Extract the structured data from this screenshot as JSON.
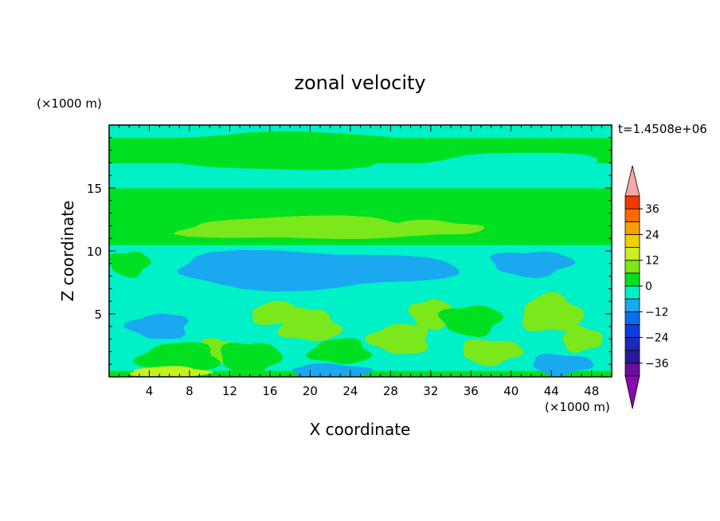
{
  "chart_data": {
    "type": "heatmap",
    "title": "zonal velocity",
    "xlabel": "X coordinate",
    "ylabel": "Z coordinate",
    "x_unit_label": "(×1000 m)",
    "y_unit_label": "(×1000 m)",
    "time_label": "t=1.4508e+06",
    "xlim": [
      0,
      50
    ],
    "ylim": [
      0,
      20
    ],
    "x_ticks": [
      4,
      8,
      12,
      16,
      20,
      24,
      28,
      32,
      36,
      40,
      44,
      48
    ],
    "y_ticks": [
      5,
      10,
      15
    ],
    "colorbar": {
      "tick_values": [
        36,
        24,
        12,
        0,
        -12,
        -24,
        -36
      ],
      "tick_labels": [
        "36",
        "24",
        "12",
        "0",
        "−12",
        "−24",
        "−36"
      ],
      "levels": [
        -42,
        -36,
        -30,
        -24,
        -18,
        -12,
        -6,
        0,
        6,
        12,
        18,
        24,
        30,
        36,
        42
      ],
      "colors": [
        "#6a0fa0",
        "#2a1a9a",
        "#1a2ab8",
        "#0a3ee0",
        "#0a6ef0",
        "#1aa8f0",
        "#00f0c8",
        "#00e020",
        "#7ae81a",
        "#c8f020",
        "#f0d000",
        "#f8a000",
        "#f86a00",
        "#f03a00"
      ],
      "under_color": "#8a0ab0",
      "over_color": "#f8a8a8"
    },
    "bands": [
      {
        "z": [
          0.0,
          0.5
        ],
        "value": 2
      },
      {
        "z": [
          0.5,
          3.0
        ],
        "value": -2
      },
      {
        "z": [
          3.0,
          5.0
        ],
        "value": -4
      },
      {
        "z": [
          5.0,
          6.5
        ],
        "value": -2
      },
      {
        "z": [
          6.5,
          10.5
        ],
        "value": -4
      },
      {
        "z": [
          10.5,
          15.0
        ],
        "value": 2
      },
      {
        "z": [
          15.0,
          17.0
        ],
        "value": -2
      },
      {
        "z": [
          17.0,
          19.0
        ],
        "value": 2
      },
      {
        "z": [
          19.0,
          20.0
        ],
        "value": -2
      }
    ],
    "blobs": [
      {
        "x": 20,
        "z": 11.8,
        "rx": 13,
        "rz": 0.9,
        "value": 8
      },
      {
        "x": 32,
        "z": 11.8,
        "rx": 5,
        "rz": 0.6,
        "value": 8
      },
      {
        "x": 20,
        "z": 8.5,
        "rx": 14,
        "rz": 1.5,
        "value": -8
      },
      {
        "x": 42,
        "z": 9.0,
        "rx": 4,
        "rz": 1.0,
        "value": -8
      },
      {
        "x": 16,
        "z": 18.0,
        "rx": 14,
        "rz": 1.5,
        "value": 2
      },
      {
        "x": 40,
        "z": 16.5,
        "rx": 10,
        "rz": 1.3,
        "value": -2
      },
      {
        "x": 20,
        "z": 4.0,
        "rx": 3,
        "rz": 1.2,
        "value": 8
      },
      {
        "x": 17,
        "z": 5.0,
        "rx": 3,
        "rz": 0.9,
        "value": 8
      },
      {
        "x": 11,
        "z": 2.0,
        "rx": 2.5,
        "rz": 1.0,
        "value": 8
      },
      {
        "x": 14,
        "z": 1.5,
        "rx": 3,
        "rz": 1.3,
        "value": 2
      },
      {
        "x": 32,
        "z": 5.0,
        "rx": 2,
        "rz": 1.2,
        "value": 8
      },
      {
        "x": 29,
        "z": 3.0,
        "rx": 3,
        "rz": 1.2,
        "value": 8
      },
      {
        "x": 23,
        "z": 2.0,
        "rx": 3,
        "rz": 1.0,
        "value": 2
      },
      {
        "x": 44,
        "z": 5.0,
        "rx": 3,
        "rz": 1.5,
        "value": 8
      },
      {
        "x": 47,
        "z": 3.0,
        "rx": 2,
        "rz": 1.0,
        "value": 8
      },
      {
        "x": 38,
        "z": 2.0,
        "rx": 3,
        "rz": 1.0,
        "value": 8
      },
      {
        "x": 36,
        "z": 4.5,
        "rx": 3,
        "rz": 1.2,
        "value": 2
      },
      {
        "x": 5,
        "z": 4.0,
        "rx": 3,
        "rz": 1.0,
        "value": -8
      },
      {
        "x": 7,
        "z": 1.5,
        "rx": 4,
        "rz": 1.2,
        "value": 2
      },
      {
        "x": 6,
        "z": 0.4,
        "rx": 4,
        "rz": 0.4,
        "value": 14
      },
      {
        "x": 22,
        "z": 0.5,
        "rx": 4,
        "rz": 0.5,
        "value": -8
      },
      {
        "x": 45,
        "z": 1.0,
        "rx": 3,
        "rz": 0.8,
        "value": -8
      },
      {
        "x": 2,
        "z": 9.0,
        "rx": 2,
        "rz": 1.0,
        "value": 2
      }
    ]
  }
}
